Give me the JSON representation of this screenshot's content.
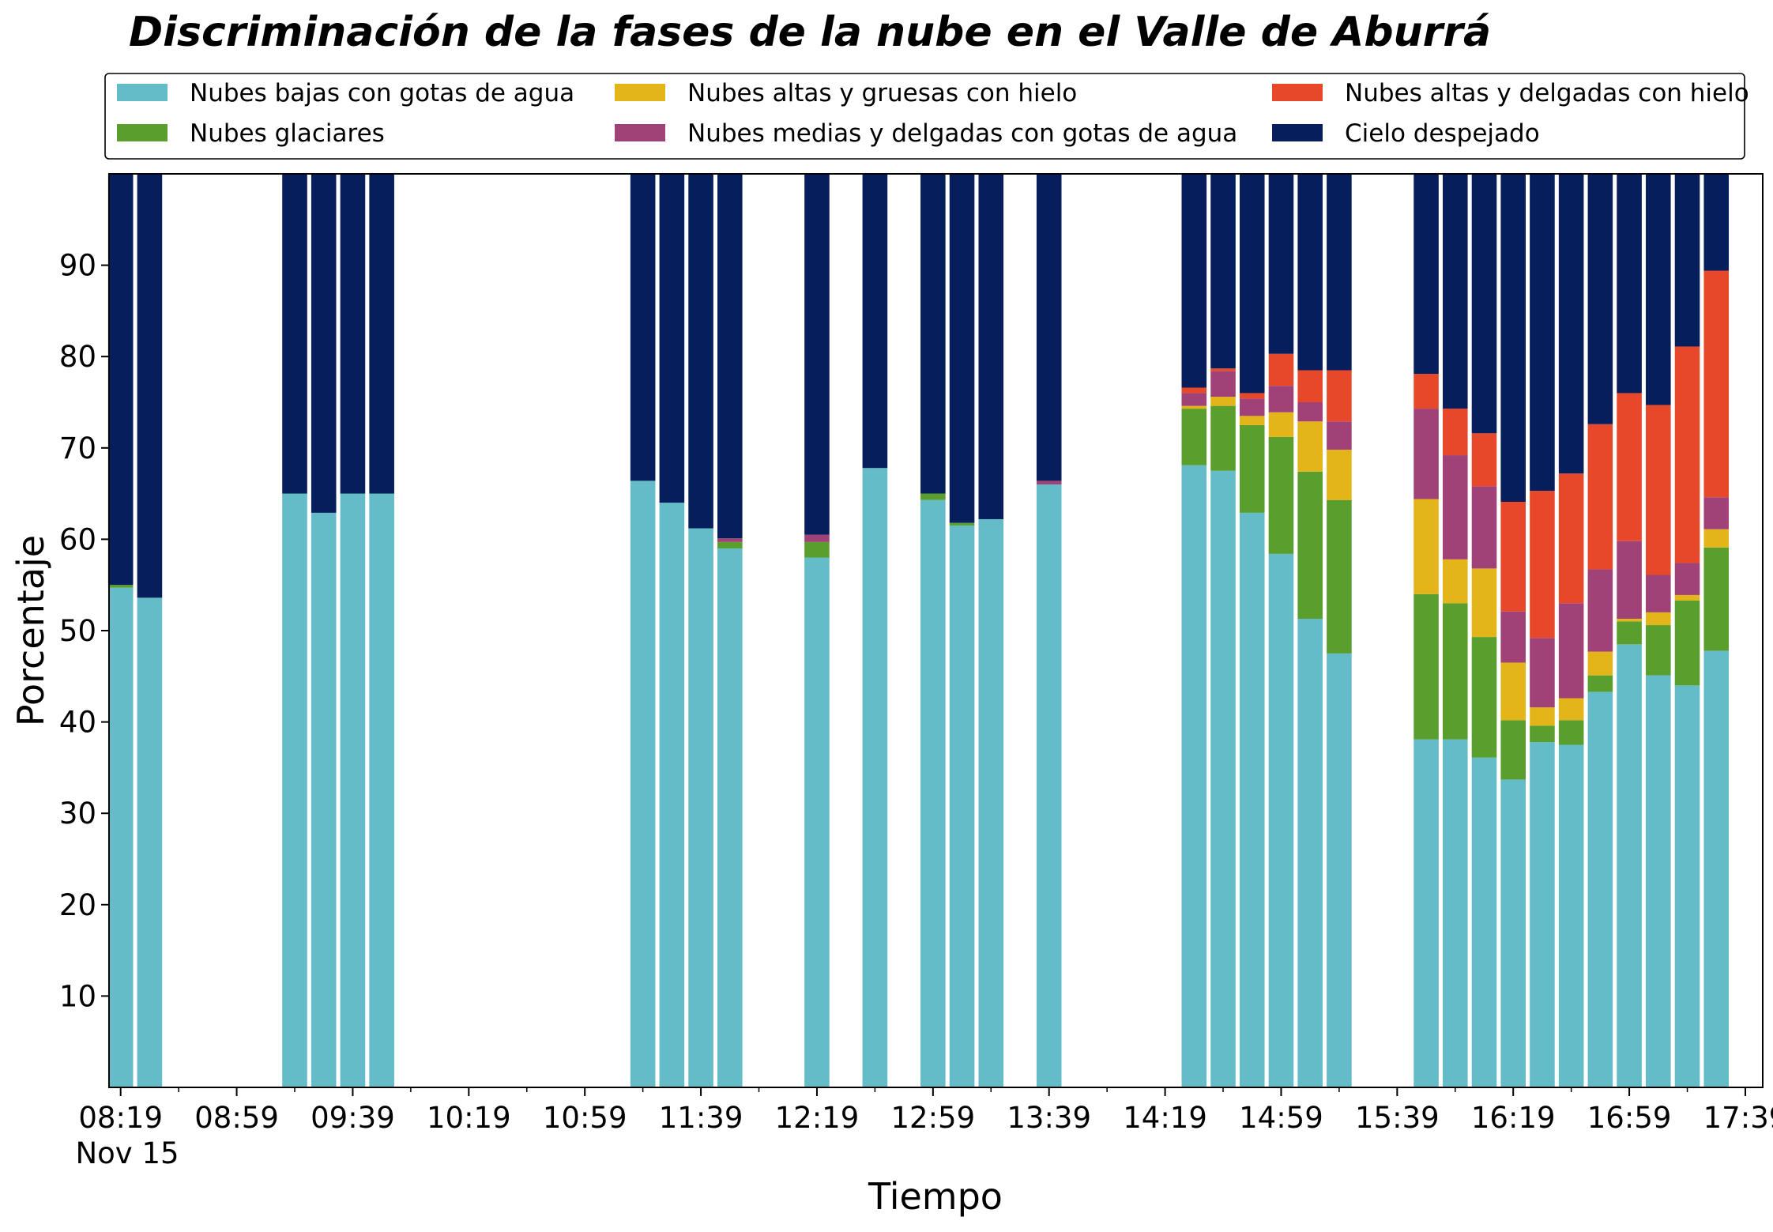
{
  "chart_data": {
    "type": "bar",
    "stacked": true,
    "title": "Discriminación de la fases de la nube en el Valle de Aburrá",
    "xlabel": "Tiempo",
    "ylabel": "Porcentaje",
    "ylim": [
      0,
      100
    ],
    "yticks": [
      10,
      20,
      30,
      40,
      50,
      60,
      70,
      80,
      90
    ],
    "x_ticks": [
      "08:19",
      "08:59",
      "09:39",
      "10:19",
      "10:59",
      "11:39",
      "12:19",
      "12:59",
      "13:39",
      "14:19",
      "14:59",
      "15:39",
      "16:19",
      "16:59",
      "17:39"
    ],
    "x_date_label": "Nov 15",
    "x_range_minutes": [
      495,
      1065
    ],
    "legend_position": "top",
    "grid": false,
    "x_minutes": [
      499,
      509,
      559,
      569,
      579,
      589,
      679,
      689,
      699,
      709,
      739,
      759,
      779,
      789,
      799,
      819,
      869,
      879,
      889,
      899,
      909,
      919,
      949,
      959,
      969,
      979,
      989,
      999,
      1009,
      1019,
      1029,
      1039,
      1049
    ],
    "x_times": [
      "08:19",
      "08:29",
      "09:19",
      "09:29",
      "09:39",
      "09:49",
      "11:19",
      "11:29",
      "11:39",
      "11:49",
      "12:19",
      "12:39",
      "12:59",
      "13:09",
      "13:19",
      "13:39",
      "14:29",
      "14:39",
      "14:49",
      "14:59",
      "15:09",
      "15:19",
      "15:49",
      "15:59",
      "16:09",
      "16:19",
      "16:29",
      "16:39",
      "16:49",
      "16:59",
      "17:09",
      "17:19",
      "17:29"
    ],
    "series": [
      {
        "name": "Nubes bajas con gotas de agua",
        "color": "#63bcc8",
        "values": [
          54.7,
          53.6,
          65.0,
          62.9,
          65.0,
          65.0,
          66.4,
          64.0,
          61.2,
          59.0,
          58.0,
          67.8,
          64.3,
          61.5,
          62.2,
          66.0,
          68.1,
          67.5,
          62.9,
          58.4,
          51.3,
          47.5,
          38.1,
          38.1,
          36.1,
          33.7,
          37.8,
          37.5,
          43.3,
          48.5,
          45.1,
          44.0,
          47.8
        ]
      },
      {
        "name": "Nubes glaciares",
        "color": "#5a9e2d",
        "values": [
          0.3,
          0.0,
          0.0,
          0.0,
          0.0,
          0.0,
          0.0,
          0.0,
          0.0,
          0.7,
          1.7,
          0.0,
          0.7,
          0.3,
          0.0,
          0.0,
          6.2,
          7.1,
          9.6,
          12.8,
          16.1,
          16.8,
          15.9,
          14.9,
          13.2,
          6.5,
          1.8,
          2.7,
          1.8,
          2.5,
          5.5,
          9.3,
          11.3
        ]
      },
      {
        "name": "Nubes altas y gruesas con hielo",
        "color": "#e3b518",
        "values": [
          0.0,
          0.0,
          0.0,
          0.0,
          0.0,
          0.0,
          0.0,
          0.0,
          0.0,
          0.0,
          0.0,
          0.0,
          0.0,
          0.0,
          0.0,
          0.0,
          0.3,
          1.0,
          1.0,
          2.7,
          5.5,
          5.5,
          10.4,
          4.8,
          7.5,
          6.3,
          2.0,
          2.4,
          2.6,
          0.3,
          1.4,
          0.6,
          2.0
        ]
      },
      {
        "name": "Nubes medias y delgadas con gotas de agua",
        "color": "#a04177",
        "values": [
          0.0,
          0.0,
          0.0,
          0.0,
          0.0,
          0.0,
          0.0,
          0.0,
          0.0,
          0.4,
          0.8,
          0.0,
          0.0,
          0.0,
          0.0,
          0.4,
          1.4,
          2.8,
          1.9,
          2.9,
          2.1,
          3.1,
          9.9,
          11.4,
          9.0,
          5.6,
          7.6,
          10.4,
          9.0,
          8.5,
          4.1,
          3.5,
          3.5
        ]
      },
      {
        "name": "Nubes altas y delgadas con hielo",
        "color": "#e8482a",
        "values": [
          0.0,
          0.0,
          0.0,
          0.0,
          0.0,
          0.0,
          0.0,
          0.0,
          0.0,
          0.0,
          0.0,
          0.0,
          0.0,
          0.0,
          0.0,
          0.0,
          0.6,
          0.3,
          0.6,
          3.5,
          3.5,
          5.6,
          3.8,
          5.1,
          5.8,
          12.0,
          16.1,
          14.2,
          15.9,
          16.2,
          18.6,
          23.7,
          24.8
        ]
      },
      {
        "name": "Cielo despejado",
        "color": "#061f5c",
        "values": [
          45.0,
          46.4,
          35.0,
          37.1,
          35.0,
          35.0,
          33.6,
          36.0,
          38.8,
          39.9,
          39.5,
          32.2,
          35.0,
          38.2,
          37.8,
          33.6,
          23.4,
          21.3,
          24.0,
          19.7,
          21.5,
          21.5,
          21.9,
          25.7,
          28.4,
          35.9,
          34.7,
          32.8,
          27.4,
          24.0,
          25.3,
          18.9,
          10.6
        ]
      }
    ]
  }
}
